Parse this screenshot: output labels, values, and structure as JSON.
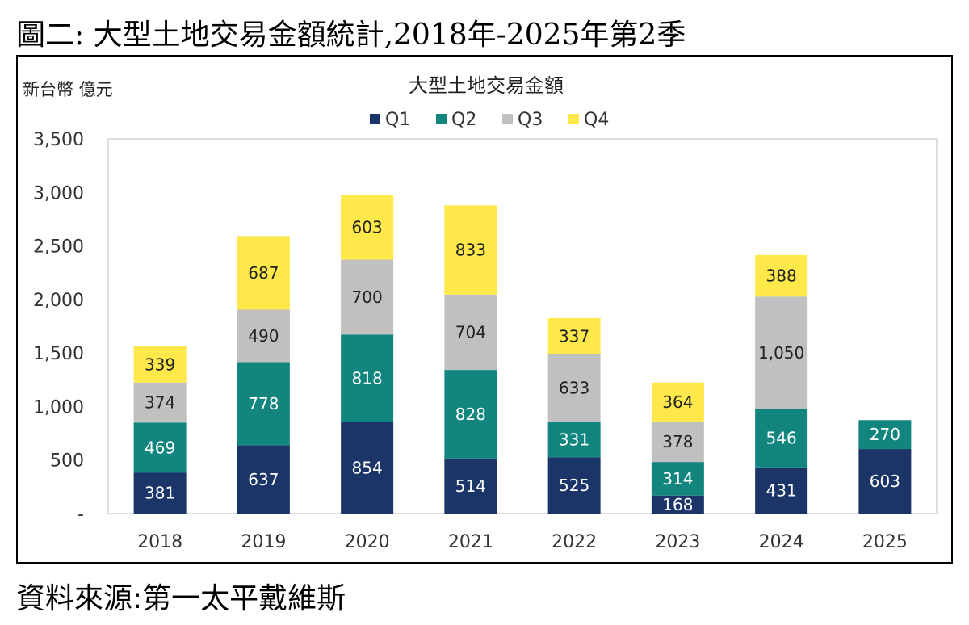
{
  "figure_title": "圖二: 大型土地交易金額統計,2018年-2025年第2季",
  "source_text": "資料來源:第一太平戴維斯",
  "chart_data": {
    "type": "bar",
    "stacked": true,
    "title": "大型土地交易金額",
    "ylabel": "新台幣 億元",
    "xlabel": "",
    "categories": [
      "2018",
      "2019",
      "2020",
      "2021",
      "2022",
      "2023",
      "2024",
      "2025"
    ],
    "series": [
      {
        "name": "Q1",
        "color": "#1b3568",
        "label_color": "#ffffff",
        "values": [
          381,
          637,
          854,
          514,
          525,
          168,
          431,
          603
        ]
      },
      {
        "name": "Q2",
        "color": "#13857f",
        "label_color": "#ffffff",
        "values": [
          469,
          778,
          818,
          828,
          331,
          314,
          546,
          270
        ]
      },
      {
        "name": "Q3",
        "color": "#c0c0c0",
        "label_color": "#222222",
        "values": [
          374,
          490,
          700,
          704,
          633,
          378,
          1050,
          null
        ]
      },
      {
        "name": "Q4",
        "color": "#ffe84a",
        "label_color": "#222222",
        "values": [
          339,
          687,
          603,
          833,
          337,
          364,
          388,
          null
        ]
      }
    ],
    "data_labels": [
      [
        "381",
        "637",
        "854",
        "514",
        "525",
        "168",
        "431",
        "603"
      ],
      [
        "469",
        "778",
        "818",
        "828",
        "331",
        "314",
        "546",
        "270"
      ],
      [
        "374",
        "490",
        "700",
        "704",
        "633",
        "378",
        "1,050",
        ""
      ],
      [
        "339",
        "687",
        "603",
        "833",
        "337",
        "364",
        "388",
        ""
      ]
    ],
    "ylim": [
      0,
      3500
    ],
    "yticks": [
      0,
      500,
      1000,
      1500,
      2000,
      2500,
      3000,
      3500
    ],
    "ytick_labels": [
      "-",
      "500",
      "1,000",
      "1,500",
      "2,000",
      "2,500",
      "3,000",
      "3,500"
    ],
    "legend_position": "top-center",
    "grid": false
  }
}
